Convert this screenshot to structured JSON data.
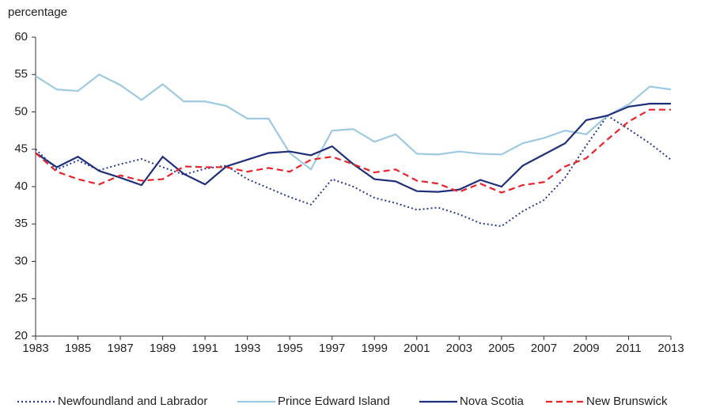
{
  "chart_data": {
    "type": "line",
    "y_label": "percentage",
    "x": [
      1983,
      1984,
      1985,
      1986,
      1987,
      1988,
      1989,
      1990,
      1991,
      1992,
      1993,
      1994,
      1995,
      1996,
      1997,
      1998,
      1999,
      2000,
      2001,
      2002,
      2003,
      2004,
      2005,
      2006,
      2007,
      2008,
      2009,
      2010,
      2011,
      2012,
      2013
    ],
    "xlim": [
      1983,
      2013
    ],
    "xticks": [
      1983,
      1985,
      1987,
      1989,
      1991,
      1993,
      1995,
      1997,
      1999,
      2001,
      2003,
      2005,
      2007,
      2009,
      2011,
      2013
    ],
    "ylim": [
      20,
      60
    ],
    "yticks": [
      20,
      25,
      30,
      35,
      40,
      45,
      50,
      55,
      60
    ],
    "grid": false,
    "legend": "bottom",
    "series": [
      {
        "name": "Newfoundland and Labrador",
        "color": "#2b3990",
        "dash": "dotted",
        "values": [
          45.0,
          42.3,
          43.5,
          42.2,
          43.0,
          43.7,
          42.6,
          41.6,
          42.4,
          42.8,
          41.0,
          39.8,
          38.6,
          37.6,
          41.0,
          40.0,
          38.5,
          37.8,
          36.9,
          37.2,
          36.3,
          35.1,
          34.7,
          36.7,
          38.2,
          41.2,
          45.5,
          49.5,
          47.7,
          45.8,
          43.6
        ]
      },
      {
        "name": "Prince Edward Island",
        "color": "#9ecae1",
        "dash": "solid",
        "values": [
          54.8,
          53.0,
          52.8,
          55.0,
          53.6,
          51.6,
          53.7,
          51.4,
          51.4,
          50.8,
          49.1,
          49.1,
          44.5,
          42.3,
          47.5,
          47.7,
          46.0,
          47.0,
          44.4,
          44.3,
          44.7,
          44.4,
          44.3,
          45.8,
          46.5,
          47.5,
          47.0,
          49.5,
          51.0,
          53.4,
          53.0
        ]
      },
      {
        "name": "Nova Scotia",
        "color": "#1f2f7a",
        "dash": "solid",
        "values": [
          44.5,
          42.6,
          44.0,
          42.1,
          41.2,
          40.2,
          44.0,
          41.7,
          40.3,
          42.7,
          43.6,
          44.5,
          44.7,
          44.2,
          45.4,
          43.0,
          41.0,
          40.7,
          39.4,
          39.3,
          39.6,
          40.9,
          40.0,
          42.8,
          44.3,
          45.8,
          48.9,
          49.5,
          50.7,
          51.1,
          51.1
        ]
      },
      {
        "name": "New Brunswick",
        "color": "#e8232a",
        "dash": "dashed",
        "values": [
          44.5,
          42.0,
          41.0,
          40.3,
          41.5,
          40.8,
          41.0,
          42.7,
          42.6,
          42.6,
          42.0,
          42.5,
          42.0,
          43.6,
          44.0,
          43.0,
          41.9,
          42.3,
          40.8,
          40.4,
          39.3,
          40.4,
          39.2,
          40.2,
          40.6,
          42.7,
          43.8,
          46.3,
          48.7,
          50.3,
          50.3
        ]
      }
    ]
  }
}
